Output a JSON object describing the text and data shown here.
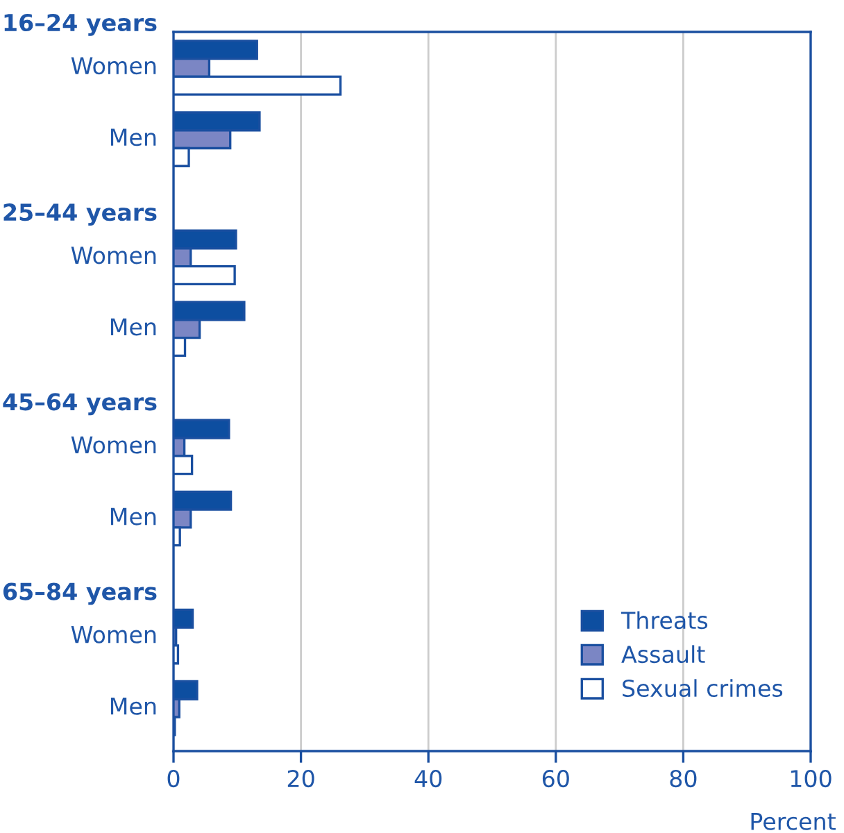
{
  "chart_data": {
    "type": "bar",
    "orientation": "horizontal",
    "xlabel": "Percent",
    "categories": [
      "16–24 years",
      "Women",
      "Men",
      "25–44 years",
      "Women",
      "Men",
      "45–64 years",
      "Women",
      "Men",
      "65–84 years",
      "Women",
      "Men"
    ],
    "series": [
      {
        "name": "Threats",
        "color": "#0d4ea0",
        "values": [
          null,
          13.1,
          13.5,
          null,
          9.8,
          11.1,
          null,
          8.7,
          9.0,
          null,
          3.0,
          3.7
        ]
      },
      {
        "name": "Assault",
        "color": "#7b86c4",
        "values": [
          null,
          5.6,
          8.9,
          null,
          2.7,
          4.1,
          null,
          1.7,
          2.7,
          null,
          0.4,
          0.9
        ]
      },
      {
        "name": "Sexual crimes",
        "color": "#ffffff",
        "values": [
          null,
          26.2,
          2.4,
          null,
          9.6,
          1.8,
          null,
          2.9,
          1.0,
          null,
          0.7,
          0.2
        ]
      }
    ],
    "xlim": [
      0,
      100
    ],
    "xticks": [
      0,
      20,
      40,
      60,
      80,
      100
    ],
    "grid": "x",
    "legend": "bottom right"
  }
}
